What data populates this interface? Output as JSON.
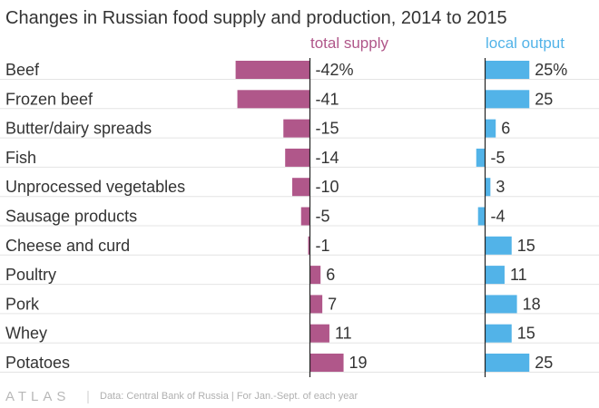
{
  "chart_data": {
    "type": "bar",
    "title": "Changes in Russian food supply and production, 2014 to 2015",
    "categories": [
      "Beef",
      "Frozen beef",
      "Butter/dairy spreads",
      "Fish",
      "Unprocessed vegetables",
      "Sausage products",
      "Cheese and curd",
      "Poultry",
      "Pork",
      "Whey",
      "Potatoes"
    ],
    "series": [
      {
        "name": "total supply",
        "values": [
          -42,
          -41,
          -15,
          -14,
          -10,
          -5,
          -1,
          6,
          7,
          11,
          19
        ],
        "labels": [
          "-42%",
          "-41",
          "-15",
          "-14",
          "-10",
          "-5",
          "-1",
          "6",
          "7",
          "11",
          "19"
        ],
        "color": "#b0578a"
      },
      {
        "name": "local output",
        "values": [
          25,
          25,
          6,
          -5,
          3,
          -4,
          15,
          11,
          18,
          15,
          25
        ],
        "labels": [
          "25%",
          "25",
          "6",
          "-5",
          "3",
          "-4",
          "15",
          "11",
          "18",
          "15",
          "25"
        ],
        "color": "#52b3e8"
      }
    ],
    "unit": "%"
  },
  "footer": {
    "logo": "ATLAS",
    "source": "Data: Central Bank of Russia | For Jan.-Sept. of each year"
  }
}
